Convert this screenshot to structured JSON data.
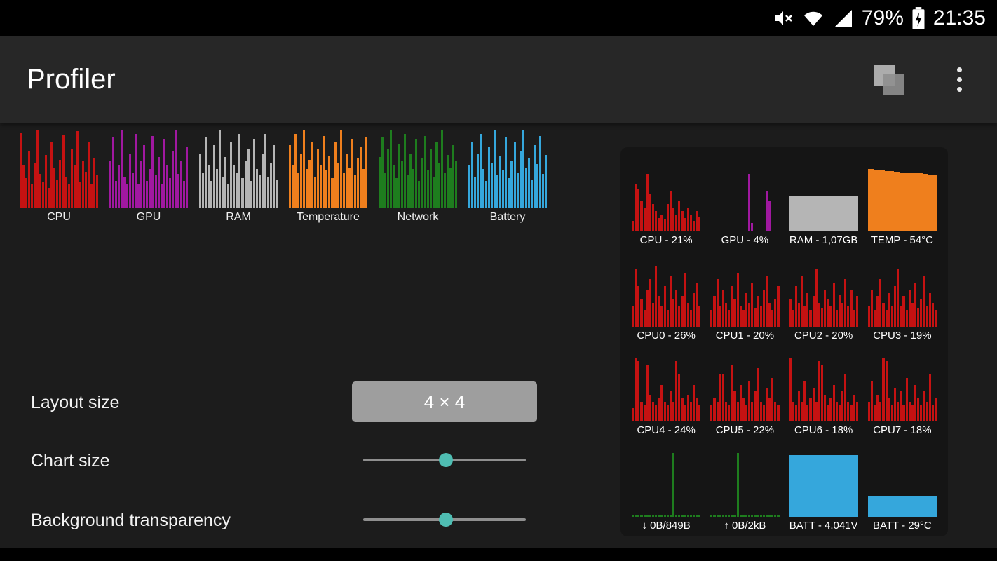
{
  "status_bar": {
    "battery_percent": "79%",
    "time": "21:35",
    "icons": [
      "mute-icon",
      "wifi-icon",
      "signal-icon",
      "battery-icon"
    ]
  },
  "app_bar": {
    "title": "Profiler",
    "icons": [
      "overlay-icon",
      "overflow-menu-icon"
    ]
  },
  "settings": {
    "layout_size_label": "Layout size",
    "layout_size_value": "4 × 4",
    "chart_size_label": "Chart size",
    "chart_size_percent": 51,
    "background_transparency_label": "Background transparency",
    "background_transparency_percent": 51
  },
  "chart_data": {
    "type": "bar",
    "note": "bar values are percent heights of each mini histogram",
    "selector_charts": [
      {
        "label": "CPU",
        "color": "#c51212",
        "bars": [
          96,
          55,
          38,
          72,
          30,
          58,
          100,
          44,
          34,
          68,
          26,
          85,
          52,
          36,
          62,
          94,
          40,
          30,
          76,
          55,
          98,
          34,
          60,
          46,
          84,
          30,
          64,
          42
        ]
      },
      {
        "label": "GPU",
        "color": "#a018a0",
        "bars": [
          60,
          90,
          35,
          55,
          100,
          40,
          30,
          70,
          45,
          95,
          30,
          60,
          80,
          35,
          50,
          92,
          42,
          65,
          30,
          88,
          55,
          38,
          72,
          100,
          44,
          60,
          35,
          78
        ]
      },
      {
        "label": "RAM",
        "color": "#b5b5b5",
        "bars": [
          70,
          45,
          90,
          55,
          35,
          80,
          50,
          100,
          40,
          65,
          30,
          85,
          55,
          45,
          95,
          38,
          60,
          75,
          35,
          88,
          50,
          42,
          70,
          95,
          40,
          58,
          80,
          36
        ]
      },
      {
        "label": "Temperature",
        "color": "#ef7f1d",
        "bars": [
          80,
          55,
          95,
          45,
          70,
          100,
          50,
          62,
          85,
          40,
          75,
          55,
          92,
          48,
          66,
          38,
          84,
          58,
          100,
          45,
          70,
          52,
          88,
          42,
          64,
          78,
          50,
          90
        ]
      },
      {
        "label": "Network",
        "color": "#1e7d1e",
        "bars": [
          65,
          90,
          45,
          75,
          100,
          55,
          38,
          82,
          60,
          95,
          42,
          70,
          50,
          88,
          35,
          64,
          92,
          48,
          76,
          40,
          85,
          58,
          100,
          45,
          68,
          52,
          80,
          60
        ]
      },
      {
        "label": "Battery",
        "color": "#35a7dc",
        "bars": [
          55,
          85,
          40,
          70,
          95,
          50,
          35,
          78,
          58,
          100,
          42,
          66,
          48,
          90,
          38,
          60,
          84,
          45,
          72,
          100,
          52,
          64,
          36,
          80,
          56,
          92,
          44,
          68
        ]
      }
    ],
    "preview_charts": [
      {
        "label": "CPU - 21%",
        "color": "#c51212",
        "bars": [
          15,
          70,
          62,
          45,
          35,
          85,
          55,
          40,
          30,
          20,
          25,
          18,
          40,
          60,
          35,
          25,
          45,
          30,
          20,
          35,
          25,
          15,
          30,
          22
        ]
      },
      {
        "label": "GPU - 4%",
        "color": "#a018a0",
        "bars": [
          0,
          0,
          0,
          0,
          0,
          0,
          0,
          0,
          0,
          0,
          0,
          0,
          0,
          85,
          12,
          0,
          0,
          0,
          0,
          60,
          45,
          0,
          0,
          0
        ]
      },
      {
        "label": "RAM - 1,07GB",
        "color": "#b5b5b5",
        "gap": 0,
        "bars": [
          52,
          52,
          52,
          52,
          52,
          52,
          52,
          52,
          52,
          52,
          52,
          52,
          52,
          52,
          52,
          52,
          52,
          52,
          52,
          52,
          52,
          52,
          52,
          52
        ]
      },
      {
        "label": "TEMP - 54°C",
        "color": "#ef7f1d",
        "gap": 0,
        "bars": [
          93,
          93,
          92,
          92,
          91,
          91,
          90,
          90,
          90,
          89,
          89,
          88,
          88,
          88,
          87,
          87,
          86,
          86,
          86,
          85,
          85,
          84,
          84,
          84
        ]
      },
      {
        "label": "CPU0 - 26%",
        "color": "#c51212",
        "bars": [
          30,
          85,
          60,
          40,
          25,
          55,
          70,
          35,
          90,
          45,
          30,
          60,
          25,
          75,
          40,
          55,
          30,
          45,
          80,
          35,
          25,
          50,
          65,
          30
        ]
      },
      {
        "label": "CPU1 - 20%",
        "color": "#c51212",
        "bars": [
          25,
          45,
          70,
          30,
          55,
          35,
          25,
          60,
          40,
          80,
          30,
          25,
          50,
          35,
          65,
          28,
          45,
          30,
          55,
          75,
          35,
          25,
          40,
          60
        ]
      },
      {
        "label": "CPU2 - 20%",
        "color": "#c51212",
        "bars": [
          40,
          25,
          60,
          35,
          75,
          30,
          50,
          25,
          45,
          85,
          35,
          28,
          55,
          40,
          30,
          65,
          25,
          48,
          35,
          70,
          30,
          55,
          25,
          45
        ]
      },
      {
        "label": "CPU3 - 19%",
        "color": "#c51212",
        "bars": [
          30,
          55,
          25,
          45,
          70,
          35,
          25,
          50,
          30,
          60,
          85,
          30,
          45,
          25,
          55,
          35,
          65,
          28,
          40,
          75,
          30,
          50,
          35,
          25
        ]
      },
      {
        "label": "CPU4 - 24%",
        "color": "#c51212",
        "bars": [
          20,
          95,
          90,
          30,
          25,
          85,
          40,
          30,
          25,
          35,
          55,
          30,
          25,
          45,
          30,
          90,
          70,
          35,
          25,
          40,
          30,
          55,
          35,
          25
        ]
      },
      {
        "label": "CPU5 - 22%",
        "color": "#c51212",
        "bars": [
          25,
          35,
          30,
          70,
          70,
          30,
          25,
          85,
          45,
          30,
          55,
          35,
          25,
          60,
          30,
          45,
          80,
          30,
          25,
          50,
          35,
          65,
          30,
          25
        ]
      },
      {
        "label": "CPU6 - 18%",
        "color": "#c51212",
        "bars": [
          95,
          30,
          25,
          45,
          30,
          60,
          25,
          35,
          50,
          30,
          90,
          85,
          40,
          25,
          35,
          55,
          30,
          25,
          45,
          70,
          30,
          25,
          40,
          30
        ]
      },
      {
        "label": "CPU7 - 18%",
        "color": "#c51212",
        "bars": [
          30,
          60,
          25,
          40,
          30,
          95,
          90,
          35,
          25,
          50,
          30,
          45,
          25,
          65,
          30,
          25,
          55,
          35,
          25,
          45,
          30,
          70,
          25,
          35
        ]
      },
      {
        "label": "↓ 0B/849B",
        "color": "#1e7d1e",
        "bars": [
          2,
          2,
          3,
          2,
          2,
          2,
          3,
          2,
          2,
          2,
          2,
          2,
          3,
          2,
          95,
          2,
          3,
          2,
          2,
          2,
          2,
          3,
          2,
          2
        ]
      },
      {
        "label": "↑ 0B/2kB",
        "color": "#1e7d1e",
        "bars": [
          2,
          2,
          3,
          2,
          2,
          2,
          2,
          2,
          2,
          95,
          3,
          2,
          2,
          2,
          3,
          2,
          2,
          2,
          2,
          3,
          2,
          2,
          3,
          2
        ]
      },
      {
        "label": "BATT - 4.041V",
        "color": "#35a7dc",
        "gap": 0,
        "bars": [
          92,
          92,
          92,
          92,
          92,
          92,
          92,
          92,
          92,
          92,
          92,
          92,
          92,
          92,
          92,
          92,
          92,
          92,
          92,
          92,
          92,
          92,
          92,
          92
        ]
      },
      {
        "label": "BATT - 29°C",
        "color": "#35a7dc",
        "gap": 0,
        "bars": [
          30,
          30,
          30,
          30,
          30,
          30,
          30,
          30,
          30,
          30,
          30,
          30,
          30,
          30,
          30,
          30,
          30,
          30,
          30,
          30,
          30,
          30,
          30,
          30
        ]
      }
    ]
  }
}
